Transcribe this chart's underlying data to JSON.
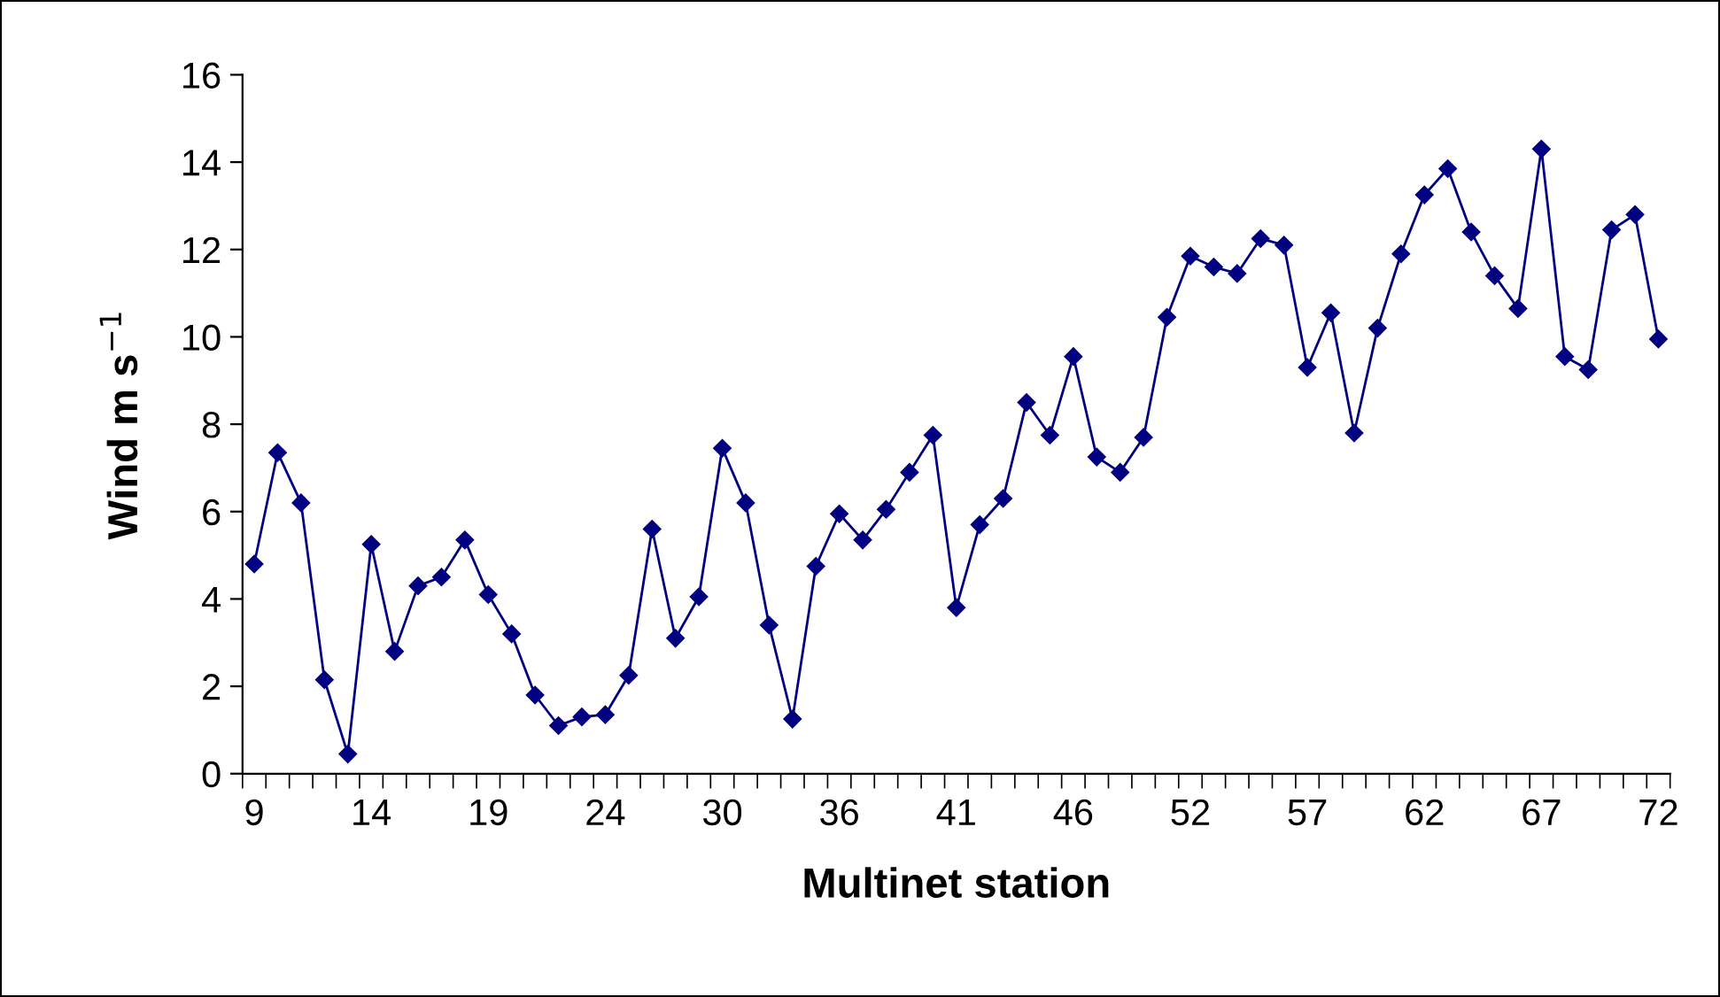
{
  "chart_data": {
    "type": "line",
    "xlabel": "Multinet station",
    "ylabel": "Wind m s$^{−1}$",
    "categories": [
      "9",
      null,
      null,
      null,
      null,
      "14",
      null,
      null,
      null,
      null,
      "19",
      null,
      null,
      null,
      null,
      "24",
      null,
      null,
      null,
      null,
      "30",
      null,
      null,
      null,
      null,
      "36",
      null,
      null,
      null,
      null,
      "41",
      null,
      null,
      null,
      null,
      "46",
      null,
      null,
      null,
      null,
      "52",
      null,
      null,
      null,
      null,
      "57",
      null,
      null,
      null,
      null,
      "62",
      null,
      null,
      null,
      null,
      "67",
      null,
      null,
      null,
      null,
      "72"
    ],
    "series": [
      {
        "color": "#000080",
        "values": [
          4.8,
          7.35,
          6.2,
          2.15,
          0.45,
          5.25,
          2.8,
          4.3,
          4.5,
          5.35,
          4.1,
          3.2,
          1.8,
          1.1,
          1.3,
          1.35,
          2.25,
          5.6,
          3.1,
          4.05,
          7.45,
          6.2,
          3.4,
          1.25,
          4.75,
          5.95,
          5.35,
          6.05,
          6.9,
          7.75,
          3.8,
          5.7,
          6.3,
          8.5,
          7.75,
          9.55,
          7.25,
          6.9,
          7.7,
          10.45,
          11.85,
          11.6,
          11.45,
          12.25,
          12.1,
          9.3,
          10.55,
          7.8,
          10.2,
          11.9,
          13.25,
          13.85,
          12.4,
          11.4,
          10.65,
          14.3,
          9.55,
          9.25,
          12.45,
          12.8,
          9.95
        ]
      }
    ],
    "ylim": [
      0,
      16
    ],
    "yticks": [
      0,
      2,
      4,
      6,
      8,
      10,
      12,
      14,
      16
    ],
    "grid": false,
    "legend": false,
    "marker": "diamond",
    "line_style": "solid"
  }
}
